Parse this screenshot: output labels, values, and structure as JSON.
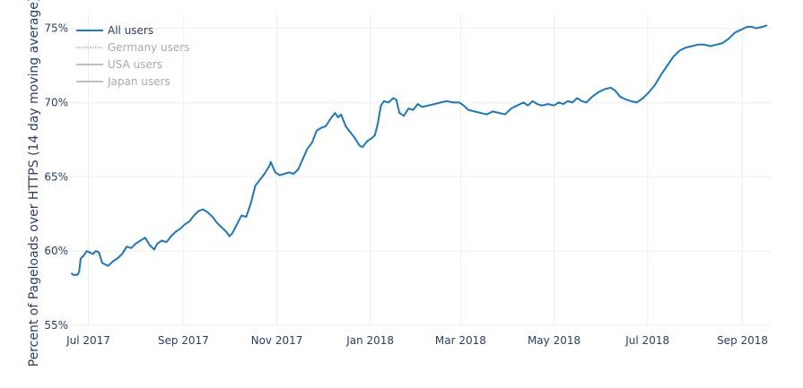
{
  "chart_data": {
    "type": "line",
    "title": "",
    "xlabel": "",
    "ylabel": "Percent of Pageloads over HTTPS (14 day moving average)",
    "ylim": [
      55,
      76
    ],
    "xlim": [
      "2017-06-19",
      "2018-09-20"
    ],
    "grid": true,
    "legend_position": "top-left",
    "x_ticks": [
      {
        "date": "2017-07-01",
        "label": "Jul 2017"
      },
      {
        "date": "2017-09-01",
        "label": "Sep 2017"
      },
      {
        "date": "2017-11-01",
        "label": "Nov 2017"
      },
      {
        "date": "2018-01-01",
        "label": "Jan 2018"
      },
      {
        "date": "2018-03-01",
        "label": "Mar 2018"
      },
      {
        "date": "2018-05-01",
        "label": "May 2018"
      },
      {
        "date": "2018-07-01",
        "label": "Jul 2018"
      },
      {
        "date": "2018-09-01",
        "label": "Sep 2018"
      }
    ],
    "y_ticks": [
      {
        "value": 55,
        "label": "55%"
      },
      {
        "value": 60,
        "label": "60%"
      },
      {
        "value": 65,
        "label": "65%"
      },
      {
        "value": 70,
        "label": "70%"
      },
      {
        "value": 75,
        "label": "75%"
      }
    ],
    "series": [
      {
        "name": "All users",
        "color": "#1f77b4",
        "visible": true,
        "line_style": "solid",
        "points": [
          [
            "2017-06-20",
            58.5
          ],
          [
            "2017-06-21",
            58.4
          ],
          [
            "2017-06-22",
            58.4
          ],
          [
            "2017-06-24",
            58.4
          ],
          [
            "2017-06-25",
            58.6
          ],
          [
            "2017-06-26",
            59.5
          ],
          [
            "2017-06-28",
            59.7
          ],
          [
            "2017-06-30",
            60.0
          ],
          [
            "2017-07-02",
            59.9
          ],
          [
            "2017-07-04",
            59.8
          ],
          [
            "2017-07-06",
            60.0
          ],
          [
            "2017-07-08",
            59.9
          ],
          [
            "2017-07-10",
            59.2
          ],
          [
            "2017-07-12",
            59.1
          ],
          [
            "2017-07-14",
            59.0
          ],
          [
            "2017-07-17",
            59.3
          ],
          [
            "2017-07-20",
            59.5
          ],
          [
            "2017-07-23",
            59.8
          ],
          [
            "2017-07-26",
            60.3
          ],
          [
            "2017-07-29",
            60.2
          ],
          [
            "2017-08-01",
            60.5
          ],
          [
            "2017-08-04",
            60.7
          ],
          [
            "2017-08-07",
            60.9
          ],
          [
            "2017-08-10",
            60.4
          ],
          [
            "2017-08-13",
            60.1
          ],
          [
            "2017-08-15",
            60.5
          ],
          [
            "2017-08-18",
            60.7
          ],
          [
            "2017-08-21",
            60.6
          ],
          [
            "2017-08-24",
            61.0
          ],
          [
            "2017-08-27",
            61.3
          ],
          [
            "2017-08-30",
            61.5
          ],
          [
            "2017-09-02",
            61.8
          ],
          [
            "2017-09-05",
            62.0
          ],
          [
            "2017-09-08",
            62.4
          ],
          [
            "2017-09-11",
            62.7
          ],
          [
            "2017-09-14",
            62.8
          ],
          [
            "2017-09-17",
            62.6
          ],
          [
            "2017-09-20",
            62.3
          ],
          [
            "2017-09-23",
            61.9
          ],
          [
            "2017-09-26",
            61.6
          ],
          [
            "2017-09-29",
            61.3
          ],
          [
            "2017-10-01",
            61.0
          ],
          [
            "2017-10-03",
            61.2
          ],
          [
            "2017-10-06",
            61.8
          ],
          [
            "2017-10-09",
            62.4
          ],
          [
            "2017-10-12",
            62.3
          ],
          [
            "2017-10-15",
            63.2
          ],
          [
            "2017-10-18",
            64.4
          ],
          [
            "2017-10-21",
            64.8
          ],
          [
            "2017-10-24",
            65.2
          ],
          [
            "2017-10-27",
            65.7
          ],
          [
            "2017-10-28",
            66.0
          ],
          [
            "2017-10-31",
            65.3
          ],
          [
            "2017-11-03",
            65.1
          ],
          [
            "2017-11-06",
            65.2
          ],
          [
            "2017-11-09",
            65.3
          ],
          [
            "2017-11-12",
            65.2
          ],
          [
            "2017-11-15",
            65.5
          ],
          [
            "2017-11-18",
            66.2
          ],
          [
            "2017-11-21",
            66.9
          ],
          [
            "2017-11-24",
            67.3
          ],
          [
            "2017-11-27",
            68.1
          ],
          [
            "2017-11-30",
            68.3
          ],
          [
            "2017-12-03",
            68.4
          ],
          [
            "2017-12-06",
            68.9
          ],
          [
            "2017-12-09",
            69.3
          ],
          [
            "2017-12-11",
            69.0
          ],
          [
            "2017-12-13",
            69.2
          ],
          [
            "2017-12-16",
            68.4
          ],
          [
            "2017-12-19",
            68.0
          ],
          [
            "2017-12-22",
            67.6
          ],
          [
            "2017-12-25",
            67.1
          ],
          [
            "2017-12-27",
            67.0
          ],
          [
            "2017-12-30",
            67.4
          ],
          [
            "2018-01-02",
            67.6
          ],
          [
            "2018-01-04",
            67.8
          ],
          [
            "2018-01-06",
            68.6
          ],
          [
            "2018-01-08",
            69.8
          ],
          [
            "2018-01-10",
            70.1
          ],
          [
            "2018-01-13",
            70.0
          ],
          [
            "2018-01-16",
            70.3
          ],
          [
            "2018-01-18",
            70.2
          ],
          [
            "2018-01-20",
            69.3
          ],
          [
            "2018-01-23",
            69.1
          ],
          [
            "2018-01-26",
            69.6
          ],
          [
            "2018-01-29",
            69.5
          ],
          [
            "2018-02-01",
            69.9
          ],
          [
            "2018-02-04",
            69.7
          ],
          [
            "2018-02-08",
            69.8
          ],
          [
            "2018-02-12",
            69.9
          ],
          [
            "2018-02-16",
            70.0
          ],
          [
            "2018-02-20",
            70.1
          ],
          [
            "2018-02-24",
            70.0
          ],
          [
            "2018-02-28",
            70.0
          ],
          [
            "2018-03-03",
            69.8
          ],
          [
            "2018-03-06",
            69.5
          ],
          [
            "2018-03-10",
            69.4
          ],
          [
            "2018-03-14",
            69.3
          ],
          [
            "2018-03-18",
            69.2
          ],
          [
            "2018-03-22",
            69.4
          ],
          [
            "2018-03-26",
            69.3
          ],
          [
            "2018-03-30",
            69.2
          ],
          [
            "2018-04-03",
            69.6
          ],
          [
            "2018-04-07",
            69.8
          ],
          [
            "2018-04-11",
            70.0
          ],
          [
            "2018-04-14",
            69.8
          ],
          [
            "2018-04-17",
            70.1
          ],
          [
            "2018-04-20",
            69.9
          ],
          [
            "2018-04-23",
            69.8
          ],
          [
            "2018-04-27",
            69.9
          ],
          [
            "2018-05-01",
            69.8
          ],
          [
            "2018-05-04",
            70.0
          ],
          [
            "2018-05-07",
            69.9
          ],
          [
            "2018-05-10",
            70.1
          ],
          [
            "2018-05-13",
            70.0
          ],
          [
            "2018-05-16",
            70.3
          ],
          [
            "2018-05-19",
            70.1
          ],
          [
            "2018-05-22",
            70.0
          ],
          [
            "2018-05-26",
            70.4
          ],
          [
            "2018-05-30",
            70.7
          ],
          [
            "2018-06-03",
            70.9
          ],
          [
            "2018-06-07",
            71.0
          ],
          [
            "2018-06-10",
            70.8
          ],
          [
            "2018-06-13",
            70.4
          ],
          [
            "2018-06-17",
            70.2
          ],
          [
            "2018-06-20",
            70.1
          ],
          [
            "2018-06-24",
            70.0
          ],
          [
            "2018-06-28",
            70.3
          ],
          [
            "2018-07-02",
            70.7
          ],
          [
            "2018-07-06",
            71.2
          ],
          [
            "2018-07-10",
            71.9
          ],
          [
            "2018-07-14",
            72.5
          ],
          [
            "2018-07-18",
            73.1
          ],
          [
            "2018-07-22",
            73.5
          ],
          [
            "2018-07-26",
            73.7
          ],
          [
            "2018-07-30",
            73.8
          ],
          [
            "2018-08-03",
            73.9
          ],
          [
            "2018-08-07",
            73.9
          ],
          [
            "2018-08-11",
            73.8
          ],
          [
            "2018-08-15",
            73.9
          ],
          [
            "2018-08-19",
            74.0
          ],
          [
            "2018-08-23",
            74.3
          ],
          [
            "2018-08-27",
            74.7
          ],
          [
            "2018-08-31",
            74.9
          ],
          [
            "2018-09-04",
            75.1
          ],
          [
            "2018-09-07",
            75.1
          ],
          [
            "2018-09-10",
            75.0
          ],
          [
            "2018-09-14",
            75.1
          ],
          [
            "2018-09-17",
            75.2
          ]
        ]
      },
      {
        "name": "Germany users",
        "color": "#999999",
        "visible": false,
        "line_style": "dotted",
        "points": []
      },
      {
        "name": "USA users",
        "color": "#999999",
        "visible": false,
        "line_style": "solid",
        "points": []
      },
      {
        "name": "Japan users",
        "color": "#999999",
        "visible": false,
        "line_style": "solid",
        "points": []
      }
    ]
  },
  "colors": {
    "grid": "#eeeeee",
    "axis_text": "#2a3f5f",
    "legend_active_text": "#2a3f5f",
    "legend_inactive_text": "#aaaaaa"
  }
}
